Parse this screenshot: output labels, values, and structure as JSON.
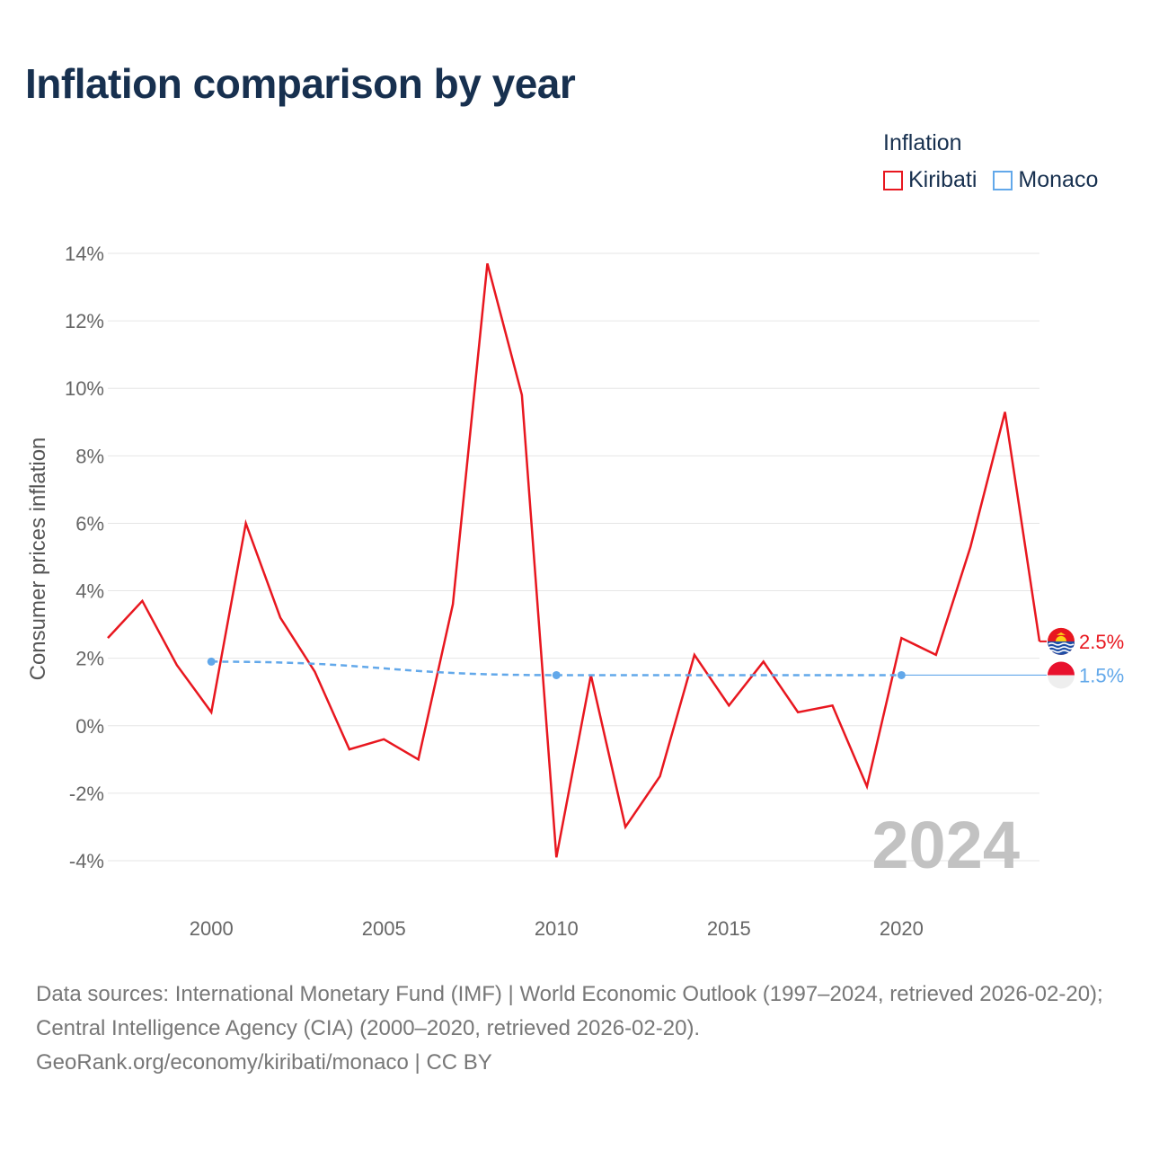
{
  "title": "Inflation comparison by year",
  "legend": {
    "title": "Inflation",
    "items": [
      {
        "label": "Kiribati",
        "color": "#e8171f"
      },
      {
        "label": "Monaco",
        "color": "#62a8ea"
      }
    ]
  },
  "watermark_year": "2024",
  "footer": {
    "sources": "Data sources: International Monetary Fund (IMF) | World Economic Outlook (1997–2024, retrieved 2026-02-20); Central Intelligence Agency (CIA) (2000–2020, retrieved 2026-02-20).",
    "credit": "GeoRank.org/economy/kiribati/monaco | CC BY"
  },
  "chart_data": {
    "type": "line",
    "title": "Inflation comparison by year",
    "xlabel": "",
    "ylabel": "Consumer prices inflation",
    "xlim": [
      1997,
      2024
    ],
    "ylim": [
      -4,
      14
    ],
    "xticks": [
      2000,
      2005,
      2010,
      2015,
      2020
    ],
    "yticks": [
      -4,
      -2,
      0,
      2,
      4,
      6,
      8,
      10,
      12,
      14
    ],
    "ytick_labels": [
      "-4%",
      "-2%",
      "0%",
      "2%",
      "4%",
      "6%",
      "8%",
      "10%",
      "12%",
      "14%"
    ],
    "grid": true,
    "legend_position": "top-right",
    "series": [
      {
        "name": "Kiribati",
        "color": "#e8171f",
        "x": [
          1997,
          1998,
          1999,
          2000,
          2001,
          2002,
          2003,
          2004,
          2005,
          2006,
          2007,
          2008,
          2009,
          2010,
          2011,
          2012,
          2013,
          2014,
          2015,
          2016,
          2017,
          2018,
          2019,
          2020,
          2021,
          2022,
          2023,
          2024
        ],
        "values": [
          2.6,
          3.7,
          1.8,
          0.4,
          6.0,
          3.2,
          1.6,
          -0.7,
          -0.4,
          -1.0,
          3.6,
          13.7,
          9.8,
          -3.9,
          1.5,
          -3.0,
          -1.5,
          2.1,
          0.6,
          1.9,
          0.4,
          0.6,
          -1.8,
          2.6,
          2.1,
          5.3,
          9.3,
          2.5
        ],
        "end_label": "2.5%"
      },
      {
        "name": "Monaco",
        "color": "#62a8ea",
        "x": [
          2000,
          2010,
          2020
        ],
        "values": [
          1.9,
          1.5,
          1.5
        ],
        "style": "dashed",
        "end_label": "1.5%"
      }
    ]
  }
}
